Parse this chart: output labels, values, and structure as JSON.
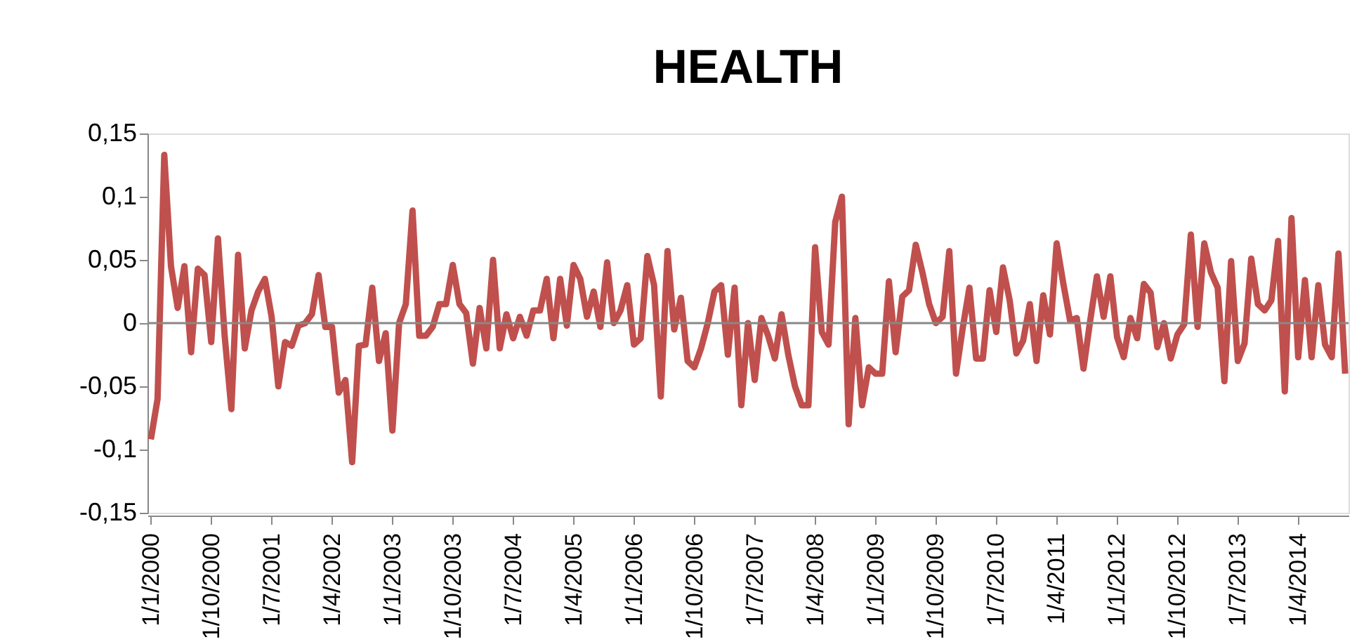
{
  "chart_data": {
    "type": "line",
    "title": "HEALTH",
    "categories": [
      "1/1/2000",
      null,
      null,
      null,
      null,
      null,
      null,
      null,
      null,
      "1/10/2000",
      null,
      null,
      null,
      null,
      null,
      null,
      null,
      null,
      "1/7/2001",
      null,
      null,
      null,
      null,
      null,
      null,
      null,
      null,
      "1/4/2002",
      null,
      null,
      null,
      null,
      null,
      null,
      null,
      null,
      "1/1/2003",
      null,
      null,
      null,
      null,
      null,
      null,
      null,
      null,
      "1/10/2003",
      null,
      null,
      null,
      null,
      null,
      null,
      null,
      null,
      "1/7/2004",
      null,
      null,
      null,
      null,
      null,
      null,
      null,
      null,
      "1/4/2005",
      null,
      null,
      null,
      null,
      null,
      null,
      null,
      null,
      "1/1/2006",
      null,
      null,
      null,
      null,
      null,
      null,
      null,
      null,
      "1/10/2006",
      null,
      null,
      null,
      null,
      null,
      null,
      null,
      null,
      "1/7/2007",
      null,
      null,
      null,
      null,
      null,
      null,
      null,
      null,
      "1/4/2008",
      null,
      null,
      null,
      null,
      null,
      null,
      null,
      null,
      "1/1/2009",
      null,
      null,
      null,
      null,
      null,
      null,
      null,
      null,
      "1/10/2009",
      null,
      null,
      null,
      null,
      null,
      null,
      null,
      null,
      "1/7/2010",
      null,
      null,
      null,
      null,
      null,
      null,
      null,
      null,
      "1/4/2011",
      null,
      null,
      null,
      null,
      null,
      null,
      null,
      null,
      "1/1/2012",
      null,
      null,
      null,
      null,
      null,
      null,
      null,
      null,
      "1/10/2012",
      null,
      null,
      null,
      null,
      null,
      null,
      null,
      null,
      "1/7/2013",
      null,
      null,
      null,
      null,
      null,
      null,
      null,
      null,
      "1/4/2014",
      null,
      null,
      null,
      null,
      null,
      null,
      null
    ],
    "series": [
      {
        "color": "#c0504d",
        "values": [
          -0.092,
          -0.06,
          0.133,
          0.045,
          0.012,
          0.045,
          -0.023,
          0.043,
          0.038,
          -0.015,
          0.067,
          -0.01,
          -0.068,
          0.054,
          -0.02,
          0.01,
          0.025,
          0.035,
          0.005,
          -0.05,
          -0.015,
          -0.018,
          -0.002,
          0.0,
          0.007,
          0.038,
          -0.003,
          -0.003,
          -0.055,
          -0.045,
          -0.11,
          -0.018,
          -0.017,
          0.028,
          -0.03,
          -0.008,
          -0.085,
          0.0,
          0.015,
          0.089,
          -0.01,
          -0.01,
          -0.003,
          0.015,
          0.015,
          0.046,
          0.015,
          0.008,
          -0.032,
          0.012,
          -0.02,
          0.05,
          -0.02,
          0.007,
          -0.012,
          0.005,
          -0.01,
          0.01,
          0.01,
          0.035,
          -0.012,
          0.035,
          -0.002,
          0.046,
          0.035,
          0.005,
          0.025,
          -0.003,
          0.048,
          0.0,
          0.01,
          0.03,
          -0.017,
          -0.012,
          0.053,
          0.03,
          -0.058,
          0.057,
          -0.005,
          0.02,
          -0.03,
          -0.035,
          -0.02,
          0.0,
          0.025,
          0.03,
          -0.025,
          0.028,
          -0.065,
          0.0,
          -0.045,
          0.004,
          -0.01,
          -0.028,
          0.007,
          -0.025,
          -0.05,
          -0.065,
          -0.065,
          0.06,
          -0.007,
          -0.017,
          0.08,
          0.1,
          -0.08,
          0.004,
          -0.065,
          -0.035,
          -0.04,
          -0.04,
          0.033,
          -0.023,
          0.021,
          0.026,
          0.062,
          0.04,
          0.015,
          0.0,
          0.005,
          0.057,
          -0.04,
          -0.004,
          0.028,
          -0.028,
          -0.028,
          0.026,
          -0.007,
          0.044,
          0.018,
          -0.024,
          -0.014,
          0.015,
          -0.03,
          0.022,
          -0.009,
          0.063,
          0.031,
          0.002,
          0.004,
          -0.036,
          0.002,
          0.037,
          0.005,
          0.037,
          -0.011,
          -0.027,
          0.004,
          -0.012,
          0.031,
          0.024,
          -0.019,
          0.0,
          -0.028,
          -0.009,
          -0.001,
          0.07,
          -0.003,
          0.063,
          0.04,
          0.028,
          -0.046,
          0.049,
          -0.03,
          -0.016,
          0.051,
          0.015,
          0.01,
          0.018,
          0.065,
          -0.054,
          0.083,
          -0.027,
          0.034,
          -0.027,
          0.03,
          -0.017,
          -0.027,
          0.055,
          -0.04
        ]
      }
    ],
    "ylim": [
      -0.15,
      0.15
    ],
    "yticks": [
      {
        "value": -0.15,
        "label": "-0,15"
      },
      {
        "value": -0.1,
        "label": "-0,1"
      },
      {
        "value": -0.05,
        "label": "-0,05"
      },
      {
        "value": 0,
        "label": "0"
      },
      {
        "value": 0.05,
        "label": "0,05"
      },
      {
        "value": 0.1,
        "label": "0,1"
      },
      {
        "value": 0.15,
        "label": "0,15"
      }
    ]
  }
}
